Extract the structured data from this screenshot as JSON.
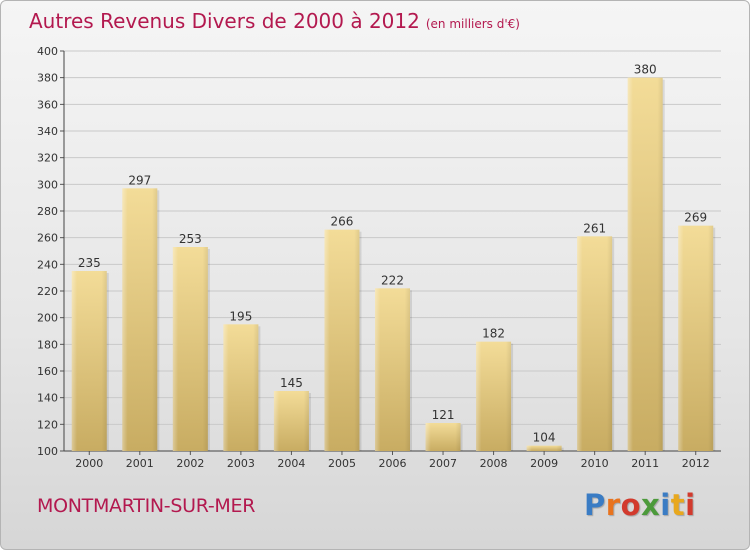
{
  "title": "Autres Revenus Divers de 2000 à 2012",
  "subtitle": "(en milliers d'€)",
  "footer": {
    "location": "MONTMARTIN-SUR-MER"
  },
  "logo": {
    "text": "Proxiti",
    "letter_colors": [
      "#3a7cc4",
      "#e8731e",
      "#d23a2d",
      "#4c9a3b",
      "#3a7cc4",
      "#e8a81e",
      "#d23a2d"
    ]
  },
  "colors": {
    "title": "#b3194f",
    "bar_light": "#f3dc98",
    "bar_dark": "#c8ac62",
    "grid": "#c9c9c9"
  },
  "chart_data": {
    "type": "bar",
    "title": "Autres Revenus Divers de 2000 à 2012",
    "categories": [
      "2000",
      "2001",
      "2002",
      "2003",
      "2004",
      "2005",
      "2006",
      "2007",
      "2008",
      "2009",
      "2010",
      "2011",
      "2012"
    ],
    "values": [
      235,
      297,
      253,
      195,
      145,
      266,
      222,
      121,
      182,
      104,
      261,
      380,
      269
    ],
    "xlabel": "",
    "ylabel": "",
    "ylim": [
      100,
      400
    ],
    "yticks": [
      100,
      120,
      140,
      160,
      180,
      200,
      220,
      240,
      260,
      280,
      300,
      320,
      340,
      360,
      380,
      400
    ],
    "grid": true
  }
}
